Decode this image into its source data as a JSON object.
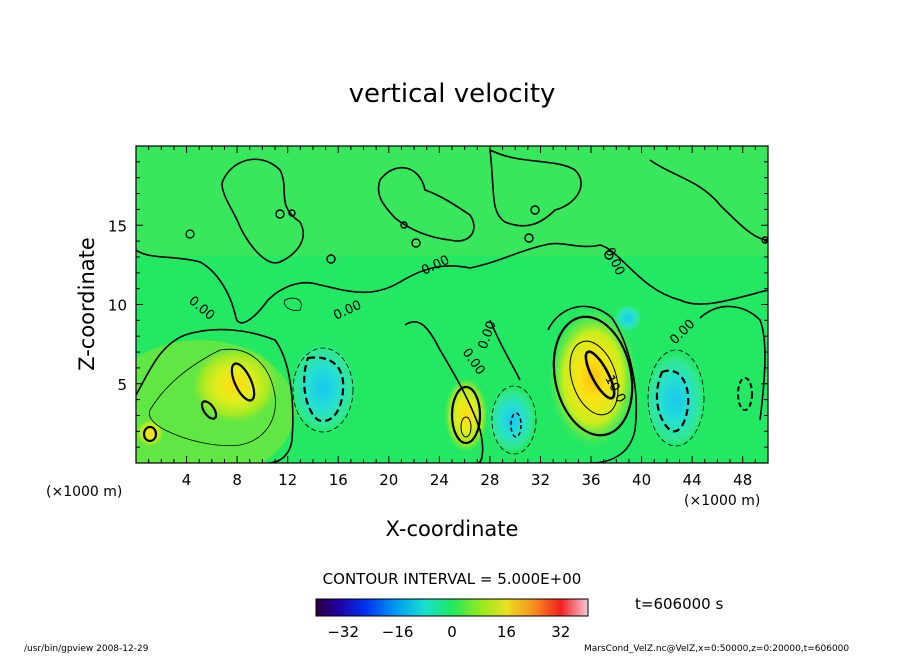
{
  "chart_data": {
    "type": "heatmap",
    "title": "vertical velocity",
    "xlabel": "X-coordinate",
    "ylabel": "Z-coordinate",
    "x_unit": "(×1000 m)",
    "y_unit": "(×1000 m)",
    "xlim": [
      0,
      50
    ],
    "ylim": [
      0,
      20
    ],
    "x_ticks": [
      4,
      8,
      12,
      16,
      20,
      24,
      28,
      32,
      36,
      40,
      44,
      48
    ],
    "y_ticks": [
      5,
      10,
      15
    ],
    "contour_interval_text": "CONTOUR INTERVAL = 5.000E+00",
    "contour_labels": [
      "0.00",
      "0.00",
      "0.00",
      "0.00",
      "0.00",
      "0.00",
      "0.00",
      "10.0"
    ],
    "time_text": "t=606000 s",
    "colorbar": {
      "ticks": [
        -32,
        -16,
        0,
        16,
        32
      ],
      "range": [
        -40,
        40
      ]
    },
    "features": [
      {
        "kind": "updraft",
        "x": 8.3,
        "z": 5.2,
        "value": 6
      },
      {
        "kind": "updraft",
        "x": 26,
        "z": 2.4,
        "value": 8
      },
      {
        "kind": "updraft",
        "x": 35.5,
        "z": 5.2,
        "value": 12
      },
      {
        "kind": "downdraft",
        "x": 15.5,
        "z": 5.0,
        "value": -6
      },
      {
        "kind": "downdraft",
        "x": 30,
        "z": 2.8,
        "value": -5
      },
      {
        "kind": "downdraft",
        "x": 42.5,
        "z": 4.0,
        "value": -8
      }
    ]
  },
  "footer": {
    "left": "/usr/bin/gpview  2008-12-29",
    "right": "MarsCond_VelZ.nc@VelZ,x=0:50000,z=0:20000,t=606000"
  },
  "colors": {
    "background": "#22e864",
    "colormap": "rainbow"
  }
}
